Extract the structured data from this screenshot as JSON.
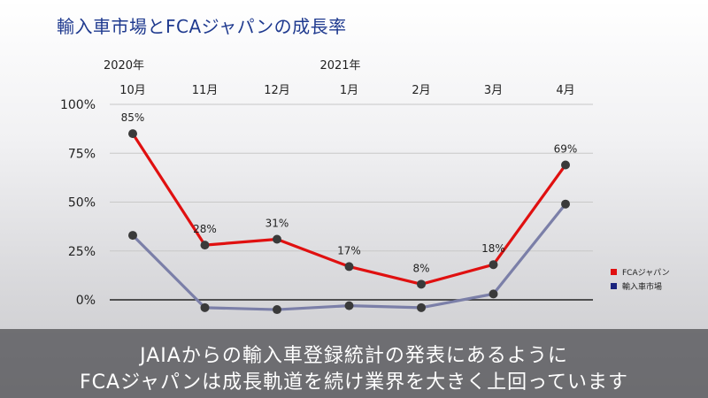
{
  "title": "輸入車市場とFCAジャパンの成長率",
  "subtitle": {
    "line1": "JAIAからの輸入車登録統計の発表にあるように",
    "line2": "FCAジャパンは成長軌道を続け業界を大きく上回っています"
  },
  "chart_data": {
    "type": "line",
    "title": "輸入車市場とFCAジャパンの成長率",
    "year_labels": [
      {
        "category_index": 0,
        "label": "2020年"
      },
      {
        "category_index": 3,
        "label": "2021年"
      }
    ],
    "categories": [
      "10月",
      "11月",
      "12月",
      "1月",
      "2月",
      "3月",
      "4月"
    ],
    "yticks": [
      "100%",
      "75%",
      "50%",
      "25%",
      "0%"
    ],
    "ytick_values": [
      100,
      75,
      50,
      25,
      0
    ],
    "ylim": [
      0,
      100
    ],
    "grid": true,
    "legend_position": "right",
    "series": [
      {
        "name": "FCAジャパン",
        "color": "#e01010",
        "values": [
          85,
          28,
          31,
          17,
          8,
          18,
          69
        ],
        "data_labels": [
          "85%",
          "28%",
          "31%",
          "17%",
          "8%",
          "18%",
          "69%"
        ]
      },
      {
        "name": "輸入車市場",
        "color": "#7b7fa8",
        "legend_color": "#1a237e",
        "values": [
          33,
          -4,
          -5,
          -3,
          -4,
          3,
          49
        ]
      }
    ]
  }
}
